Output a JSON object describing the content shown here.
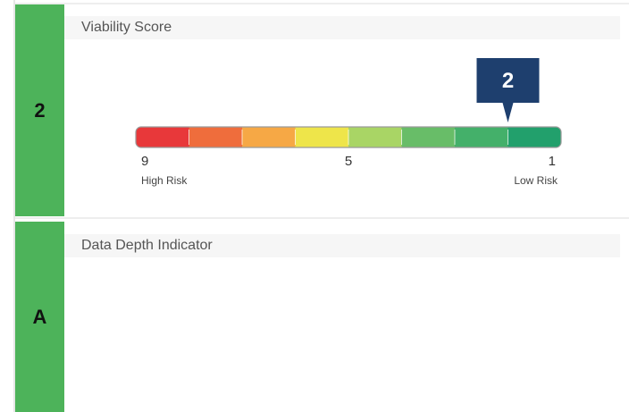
{
  "sections": [
    {
      "badge": "2",
      "title": "Viability Score"
    },
    {
      "badge": "A",
      "title": "Data Depth Indicator"
    }
  ],
  "gauge": {
    "score": 2,
    "scale_start": 9,
    "scale_end": 1,
    "ticks": [
      9,
      5,
      1
    ],
    "start_label": "High Risk",
    "end_label": "Low Risk",
    "colors": [
      "#e8383a",
      "#ef6d3c",
      "#f6a845",
      "#eee54a",
      "#a9d565",
      "#68bd68",
      "#44b06a",
      "#22a06c"
    ]
  }
}
